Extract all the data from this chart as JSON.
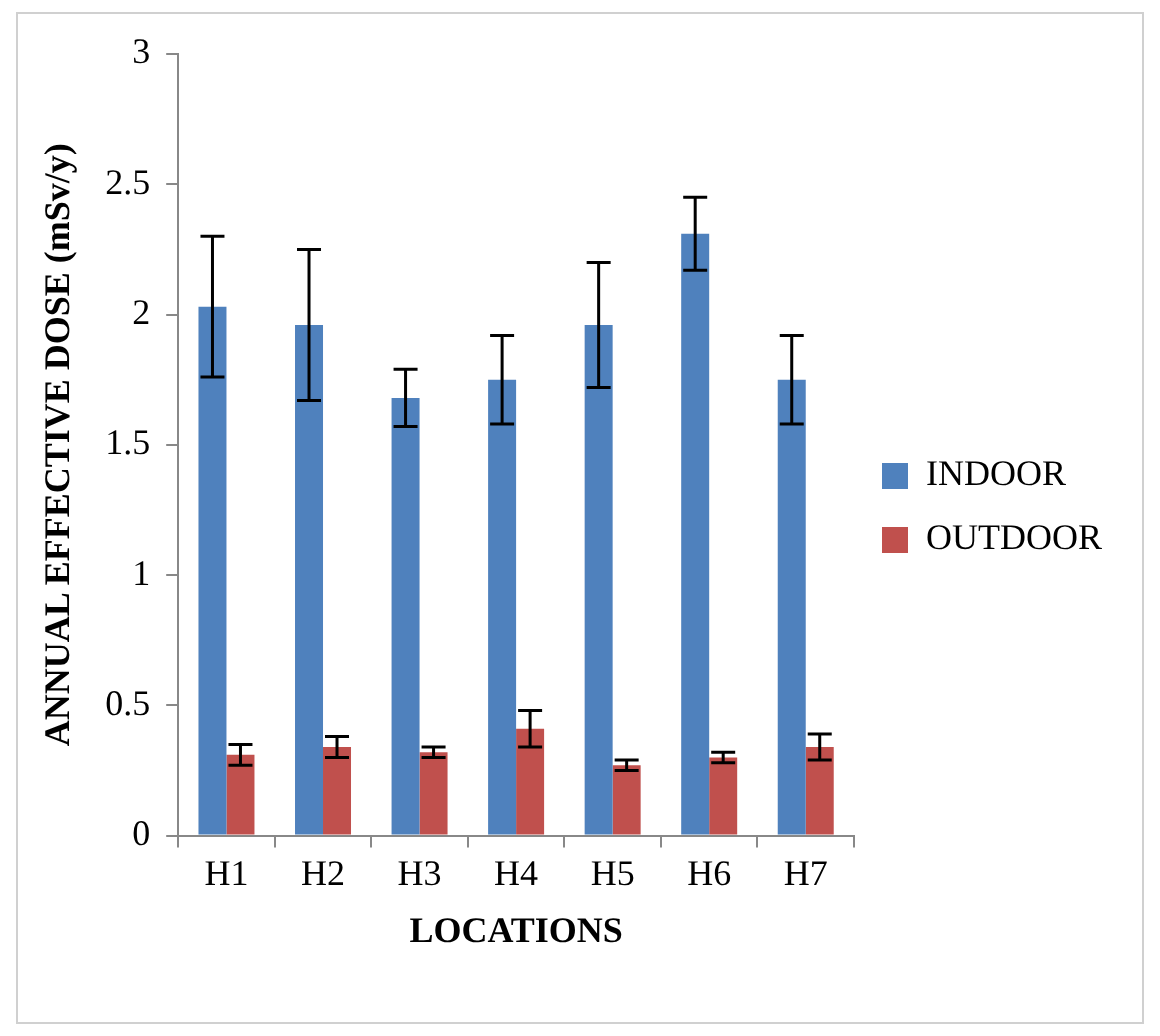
{
  "chart_data": {
    "type": "bar",
    "xlabel": "LOCATIONS",
    "ylabel": "ANNUAL EFFECTIVE DOSE (mSv/y)",
    "categories": [
      "H1",
      "H2",
      "H3",
      "H4",
      "H5",
      "H6",
      "H7"
    ],
    "series": [
      {
        "name": "INDOOR",
        "color": "#4f81bd",
        "values": [
          2.03,
          1.96,
          1.68,
          1.75,
          1.96,
          2.31,
          1.75
        ],
        "errors": [
          0.27,
          0.29,
          0.11,
          0.17,
          0.24,
          0.14,
          0.17
        ]
      },
      {
        "name": "OUTDOOR",
        "color": "#c0504d",
        "values": [
          0.31,
          0.34,
          0.32,
          0.41,
          0.27,
          0.3,
          0.34
        ],
        "errors": [
          0.04,
          0.04,
          0.02,
          0.07,
          0.02,
          0.02,
          0.05
        ]
      }
    ],
    "ylim": [
      0,
      3
    ],
    "yticks": [
      0,
      0.5,
      1,
      1.5,
      2,
      2.5,
      3
    ],
    "grid": false,
    "legend": "right"
  }
}
